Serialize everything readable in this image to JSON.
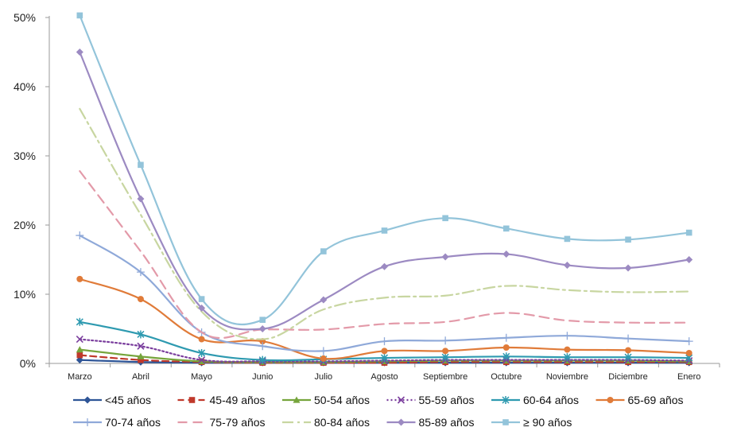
{
  "chart_data": {
    "type": "line",
    "title": "",
    "xlabel": "",
    "ylabel": "",
    "ylim": [
      0,
      50
    ],
    "yticks": [
      0,
      10,
      20,
      30,
      40,
      50
    ],
    "ytick_labels": [
      "0%",
      "10%",
      "20%",
      "30%",
      "40%",
      "50%"
    ],
    "categories": [
      "Marzo",
      "Abril",
      "Mayo",
      "Junio",
      "Julio",
      "Agosto",
      "Septiembre",
      "Octubre",
      "Noviembre",
      "Diciembre",
      "Enero"
    ],
    "grid": false,
    "legend_position": "bottom",
    "series": [
      {
        "name": "<45 años",
        "color": "#2E5597",
        "dash": "",
        "marker": "diamond",
        "values": [
          0.5,
          0.2,
          0.1,
          0.1,
          0.1,
          0.1,
          0.1,
          0.1,
          0.1,
          0.1,
          0.1
        ]
      },
      {
        "name": "45-49 años",
        "color": "#C0392B",
        "dash": "8,5",
        "marker": "square",
        "values": [
          1.2,
          0.5,
          0.2,
          0.1,
          0.1,
          0.1,
          0.2,
          0.2,
          0.2,
          0.2,
          0.2
        ]
      },
      {
        "name": "50-54 años",
        "color": "#76A53C",
        "dash": "",
        "marker": "triangle",
        "values": [
          2.0,
          1.0,
          0.3,
          0.2,
          0.2,
          0.3,
          0.4,
          0.4,
          0.4,
          0.4,
          0.3
        ]
      },
      {
        "name": "55-59 años",
        "color": "#7B3F9E",
        "dash": "2,3",
        "marker": "x",
        "values": [
          3.5,
          2.5,
          0.5,
          0.3,
          0.3,
          0.4,
          0.5,
          0.5,
          0.5,
          0.5,
          0.4
        ]
      },
      {
        "name": "60-64 años",
        "color": "#2E9AB0",
        "dash": "",
        "marker": "asterisk",
        "values": [
          6.0,
          4.2,
          1.5,
          0.5,
          0.6,
          0.8,
          0.9,
          1.0,
          0.9,
          0.9,
          0.8
        ]
      },
      {
        "name": "65-69 años",
        "color": "#E07B39",
        "dash": "",
        "marker": "circle",
        "values": [
          12.2,
          9.3,
          3.5,
          3.2,
          0.7,
          1.8,
          1.8,
          2.3,
          2.0,
          1.9,
          1.5
        ]
      },
      {
        "name": "70-74 años",
        "color": "#8FA9D9",
        "dash": "",
        "marker": "plus",
        "values": [
          18.5,
          13.2,
          4.5,
          2.5,
          1.8,
          3.2,
          3.3,
          3.7,
          4.0,
          3.6,
          3.2
        ]
      },
      {
        "name": "75-79 años",
        "color": "#E39AA9",
        "dash": "12,7",
        "marker": "none",
        "values": [
          27.8,
          16.2,
          4.5,
          4.9,
          4.9,
          5.7,
          6.0,
          7.3,
          6.2,
          5.9,
          5.9
        ]
      },
      {
        "name": "80-84 años",
        "color": "#C8D6A1",
        "dash": "14,5,3,5",
        "marker": "none",
        "values": [
          36.8,
          21.5,
          7.5,
          3.5,
          7.8,
          9.5,
          9.8,
          11.2,
          10.6,
          10.3,
          10.4
        ]
      },
      {
        "name": "85-89 años",
        "color": "#9C8AC2",
        "dash": "",
        "marker": "diamond",
        "values": [
          45.0,
          23.8,
          8.0,
          5.0,
          9.2,
          14.0,
          15.4,
          15.8,
          14.2,
          13.8,
          15.0
        ]
      },
      {
        "name": "≥ 90 años",
        "color": "#93C4DA",
        "dash": "",
        "marker": "square",
        "values": [
          50.3,
          28.7,
          9.3,
          6.3,
          16.2,
          19.2,
          21.0,
          19.5,
          18.0,
          17.9,
          18.9
        ]
      }
    ]
  }
}
